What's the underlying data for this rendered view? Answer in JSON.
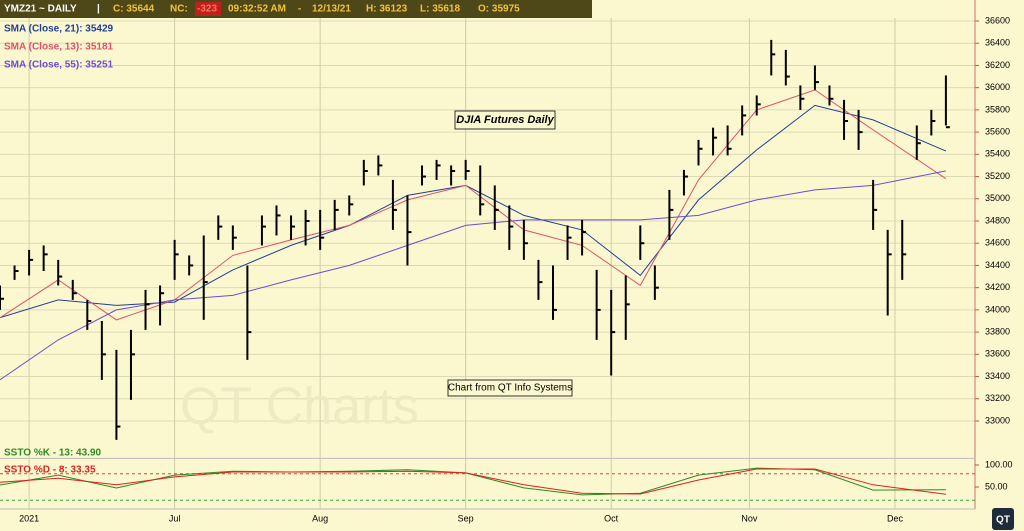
{
  "header": {
    "symbol": "YMZ21 ~ DAILY",
    "sep1": "|",
    "close": "C: 35644",
    "nc_label": "NC:",
    "nc": "-323",
    "time": "09:32:52 AM",
    "sep2": "-",
    "date": "12/13/21",
    "high": "H: 36123",
    "low": "L: 35618",
    "open": "O: 35975"
  },
  "chart_data": {
    "type": "ohlc",
    "title": "DJIA Futures Daily",
    "annotation": "Chart from QT Info Systems",
    "watermark": "QT Charts",
    "logo": "QT",
    "xlim": [
      0,
      134
    ],
    "xticks": [
      {
        "value": 4,
        "label": "2021"
      },
      {
        "value": 24,
        "label": "Jul"
      },
      {
        "value": 44,
        "label": "Aug"
      },
      {
        "value": 64,
        "label": "Sep"
      },
      {
        "value": 84,
        "label": "Oct"
      },
      {
        "value": 103,
        "label": "Nov"
      },
      {
        "value": 123,
        "label": "Dec"
      }
    ],
    "ylim": [
      32700,
      36789
    ],
    "yticks": [
      33000,
      33200,
      33400,
      33600,
      33800,
      34000,
      34200,
      34400,
      34600,
      34800,
      35000,
      35200,
      35400,
      35600,
      35800,
      36000,
      36200,
      36400,
      36600
    ],
    "grid": true,
    "bar_color": "#000000",
    "x": [
      0,
      2,
      4,
      6,
      8,
      10,
      12,
      14,
      16,
      18,
      20,
      22,
      24,
      26,
      28,
      30,
      32,
      34,
      36,
      38,
      40,
      42,
      44,
      46,
      48,
      50,
      52,
      54,
      56,
      58,
      60,
      62,
      64,
      66,
      68,
      70,
      72,
      74,
      76,
      78,
      80,
      82,
      84,
      86,
      88,
      90,
      92,
      94,
      96,
      98,
      100,
      102,
      104,
      106,
      108,
      110,
      112,
      114,
      116,
      118,
      120,
      122,
      124,
      126,
      128,
      130
    ],
    "high": [
      34220,
      34400,
      34540,
      34580,
      34450,
      34270,
      34090,
      33900,
      33640,
      33820,
      34180,
      34220,
      34630,
      34490,
      34670,
      34850,
      34760,
      34400,
      34850,
      34940,
      34850,
      34900,
      34900,
      34990,
      35030,
      35350,
      35390,
      35170,
      35030,
      35300,
      35350,
      35300,
      35350,
      35300,
      35120,
      34940,
      34810,
      34450,
      34400,
      34760,
      34810,
      34360,
      34180,
      34310,
      34760,
      34400,
      35080,
      35260,
      35530,
      35640,
      35660,
      35840,
      35930,
      36430,
      36340,
      36020,
      36200,
      36020,
      35890,
      35800,
      35170,
      34720,
      34810,
      35660,
      35800,
      36110
    ],
    "low": [
      34000,
      34270,
      34310,
      34350,
      34220,
      34090,
      33820,
      33370,
      32830,
      33190,
      33820,
      33860,
      34270,
      34310,
      33910,
      34630,
      34540,
      33550,
      34580,
      34670,
      34630,
      34580,
      34540,
      34720,
      34850,
      35120,
      35210,
      34720,
      34400,
      35120,
      35170,
      35120,
      35170,
      34850,
      34720,
      34540,
      34450,
      34090,
      33910,
      34450,
      34490,
      33730,
      33410,
      33730,
      34450,
      34090,
      34630,
      35030,
      35300,
      35390,
      35390,
      35570,
      35750,
      36110,
      36020,
      35800,
      35980,
      35840,
      35530,
      35440,
      34720,
      33950,
      34270,
      35350,
      35570,
      35660
    ],
    "close": [
      34100,
      34350,
      34450,
      34500,
      34300,
      34150,
      33900,
      33600,
      32950,
      33600,
      34050,
      34150,
      34500,
      34400,
      34250,
      34750,
      34650,
      33800,
      34750,
      34850,
      34750,
      34800,
      34650,
      34900,
      34950,
      35250,
      35300,
      34900,
      34700,
      35200,
      35300,
      35250,
      35250,
      34950,
      34900,
      34750,
      34600,
      34250,
      34000,
      34650,
      34700,
      34000,
      33800,
      34050,
      34600,
      34200,
      34900,
      35200,
      35450,
      35550,
      35450,
      35750,
      35850,
      36300,
      36100,
      35900,
      36050,
      35900,
      35700,
      35600,
      34900,
      34500,
      34500,
      35500,
      35700,
      35644
    ],
    "series": [
      {
        "name": "SMA (Close, 21): 35429",
        "color": "#1f3f9a",
        "x": [
          0,
          8,
          16,
          24,
          32,
          40,
          48,
          56,
          64,
          72,
          80,
          88,
          96,
          104,
          112,
          120,
          130
        ],
        "values": [
          33930,
          34090,
          34040,
          34070,
          34360,
          34580,
          34760,
          35030,
          35120,
          34850,
          34720,
          34310,
          34990,
          35440,
          35840,
          35710,
          35429
        ]
      },
      {
        "name": "SMA (Close, 13): 35181",
        "color": "#e0506a",
        "x": [
          0,
          8,
          16,
          24,
          32,
          40,
          48,
          56,
          64,
          72,
          80,
          88,
          96,
          104,
          112,
          120,
          130
        ],
        "values": [
          33930,
          34270,
          33910,
          34090,
          34490,
          34630,
          34760,
          34990,
          35120,
          34720,
          34580,
          34220,
          35170,
          35800,
          35980,
          35620,
          35181
        ]
      },
      {
        "name": "SMA (Close, 55): 35251",
        "color": "#6a4fd0",
        "x": [
          0,
          8,
          16,
          24,
          32,
          40,
          48,
          56,
          64,
          72,
          80,
          88,
          96,
          104,
          112,
          120,
          130
        ],
        "values": [
          33370,
          33730,
          34000,
          34090,
          34130,
          34270,
          34400,
          34580,
          34760,
          34810,
          34810,
          34810,
          34850,
          34990,
          35080,
          35120,
          35251
        ]
      }
    ],
    "stochastic": {
      "ylim": [
        0,
        115
      ],
      "yticks": [
        {
          "value": 50,
          "label": "50.00"
        },
        {
          "value": 100,
          "label": "100.00"
        }
      ],
      "overbought": 80,
      "oversold": 20,
      "series": [
        {
          "name": "SSTO %K - 13: 43.90",
          "color": "#2e8b22",
          "x": [
            0,
            8,
            16,
            24,
            32,
            40,
            48,
            56,
            64,
            72,
            80,
            88,
            96,
            104,
            112,
            120,
            130
          ],
          "values": [
            54.5,
            77,
            47.7,
            77,
            86,
            84,
            86,
            89,
            82,
            48,
            32,
            36,
            77,
            93,
            89,
            43,
            43.9
          ]
        },
        {
          "name": "SSTO %D - 8: 33.35",
          "color": "#e02020",
          "x": [
            0,
            8,
            16,
            24,
            32,
            40,
            48,
            56,
            64,
            72,
            80,
            88,
            96,
            104,
            112,
            120,
            130
          ],
          "values": [
            61,
            70,
            55,
            73,
            84,
            84,
            84,
            86,
            82,
            55,
            36,
            34,
            66,
            91,
            91,
            55,
            33.35
          ]
        }
      ]
    }
  }
}
